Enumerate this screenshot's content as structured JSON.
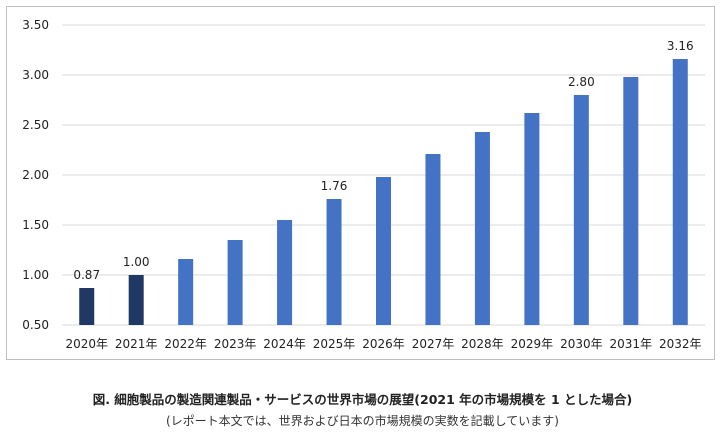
{
  "chart_data": {
    "type": "bar",
    "categories": [
      "2020年",
      "2021年",
      "2022年",
      "2023年",
      "2024年",
      "2025年",
      "2026年",
      "2027年",
      "2028年",
      "2029年",
      "2030年",
      "2031年",
      "2032年"
    ],
    "values": [
      0.87,
      1.0,
      1.16,
      1.35,
      1.55,
      1.76,
      1.98,
      2.21,
      2.43,
      2.62,
      2.8,
      2.98,
      3.16
    ],
    "data_labels": [
      "0.87",
      "1.00",
      "",
      "",
      "",
      "1.76",
      "",
      "",
      "",
      "",
      "2.80",
      "",
      "3.16"
    ],
    "bar_colors": [
      "#1f3864",
      "#1f3864",
      "#4472c4",
      "#4472c4",
      "#4472c4",
      "#4472c4",
      "#4472c4",
      "#4472c4",
      "#4472c4",
      "#4472c4",
      "#4472c4",
      "#4472c4",
      "#4472c4"
    ],
    "ylim": [
      0.5,
      3.5
    ],
    "yticks": [
      "0.50",
      "1.00",
      "1.50",
      "2.00",
      "2.50",
      "3.00",
      "3.50"
    ],
    "grid": true,
    "grid_color": "#d9d9d9",
    "title": "",
    "xlabel": "",
    "ylabel": ""
  },
  "caption": {
    "title": "図. 細胞製品の製造関連製品・サービスの世界市場の展望(2021 年の市場規模を 1 とした場合)",
    "note": "(レポート本文では、世界および日本の市場規模の実数を記載しています)"
  }
}
